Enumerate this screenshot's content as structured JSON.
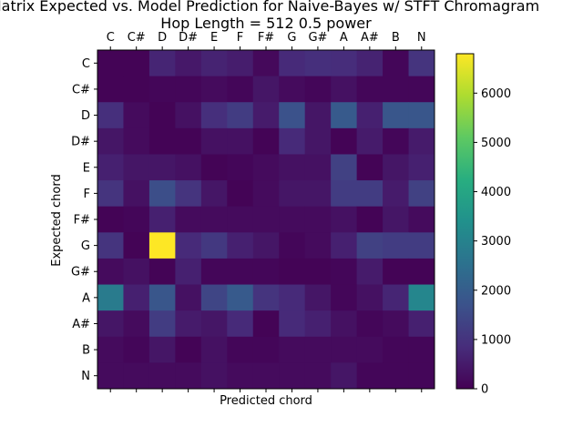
{
  "chart_data": {
    "type": "heatmap",
    "title_line1": "Matrix Expected vs. Model Prediction for Naive-Bayes w/ STFT Chromagram",
    "title_line2": "Hop Length = 512 0.5 power",
    "xlabel": "Predicted chord",
    "ylabel": "Expected chord",
    "x_categories": [
      "C",
      "C#",
      "D",
      "D#",
      "E",
      "F",
      "F#",
      "G",
      "G#",
      "A",
      "A#",
      "B",
      "N"
    ],
    "y_categories": [
      "C",
      "C#",
      "D",
      "D#",
      "E",
      "F",
      "F#",
      "G",
      "G#",
      "A",
      "A#",
      "B",
      "N"
    ],
    "colormap": "viridis",
    "colorbar": {
      "range": [
        0,
        6800
      ],
      "ticks": [
        0,
        1000,
        2000,
        3000,
        4000,
        5000,
        6000
      ]
    },
    "matrix": [
      [
        50,
        50,
        700,
        450,
        650,
        550,
        150,
        800,
        900,
        850,
        650,
        100,
        1000
      ],
      [
        50,
        50,
        100,
        100,
        200,
        100,
        400,
        200,
        100,
        300,
        100,
        100,
        100
      ],
      [
        900,
        200,
        50,
        300,
        900,
        1200,
        500,
        1700,
        400,
        1900,
        600,
        1800,
        1800
      ],
      [
        400,
        200,
        50,
        50,
        300,
        300,
        50,
        800,
        400,
        50,
        500,
        100,
        500
      ],
      [
        600,
        400,
        400,
        300,
        50,
        100,
        200,
        300,
        300,
        1300,
        50,
        400,
        600
      ],
      [
        1000,
        300,
        1600,
        1000,
        400,
        50,
        200,
        400,
        400,
        1200,
        1200,
        500,
        1300
      ],
      [
        50,
        100,
        600,
        200,
        200,
        200,
        200,
        200,
        200,
        300,
        50,
        400,
        200
      ],
      [
        1000,
        50,
        6800,
        800,
        1100,
        600,
        400,
        100,
        200,
        600,
        1300,
        1200,
        1200
      ],
      [
        200,
        300,
        50,
        600,
        100,
        100,
        100,
        50,
        50,
        100,
        500,
        50,
        50
      ],
      [
        2800,
        600,
        1800,
        300,
        1400,
        1900,
        1000,
        800,
        400,
        100,
        300,
        700,
        3100
      ],
      [
        400,
        200,
        1200,
        500,
        400,
        800,
        50,
        800,
        600,
        300,
        100,
        200,
        600
      ],
      [
        200,
        100,
        400,
        50,
        300,
        100,
        100,
        200,
        200,
        200,
        200,
        100,
        100
      ],
      [
        200,
        200,
        200,
        200,
        300,
        200,
        200,
        200,
        200,
        400,
        100,
        100,
        100
      ]
    ]
  }
}
